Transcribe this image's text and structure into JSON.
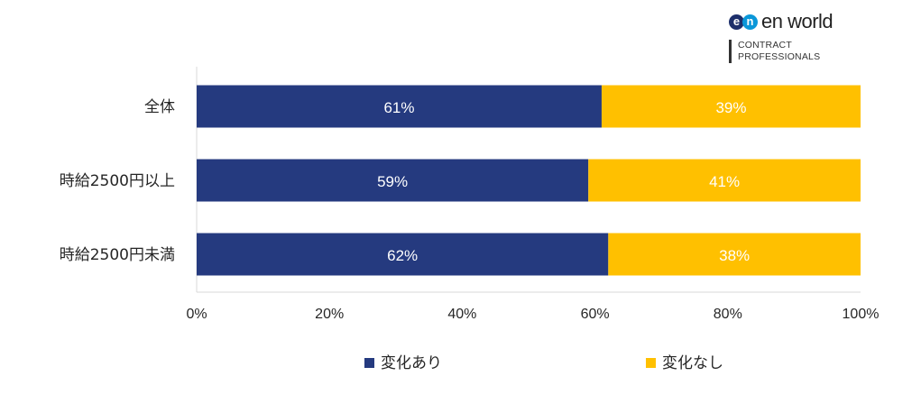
{
  "logo": {
    "mark_left": "e",
    "mark_right": "n",
    "name": "en world",
    "tagline_line1": "CONTRACT",
    "tagline_line2": "PROFESSIONALS"
  },
  "chart_data": {
    "type": "bar",
    "orientation": "horizontal",
    "stacked": true,
    "categories": [
      "全体",
      "時給2500円以上",
      "時給2500円未満"
    ],
    "series": [
      {
        "name": "変化あり",
        "values": [
          61,
          59,
          62
        ],
        "labels": [
          "61%",
          "59%",
          "62%"
        ],
        "color": "#253a7f"
      },
      {
        "name": "変化なし",
        "values": [
          39,
          41,
          38
        ],
        "labels": [
          "39%",
          "41%",
          "38%"
        ],
        "color": "#ffc000"
      }
    ],
    "xlim": [
      0,
      100
    ],
    "xticks": [
      "0%",
      "20%",
      "40%",
      "60%",
      "80%",
      "100%"
    ],
    "grid": false,
    "legend_position": "bottom",
    "label_color": "#ffffff",
    "text_color": "#262626",
    "axis_color": "#d9d9d9"
  }
}
